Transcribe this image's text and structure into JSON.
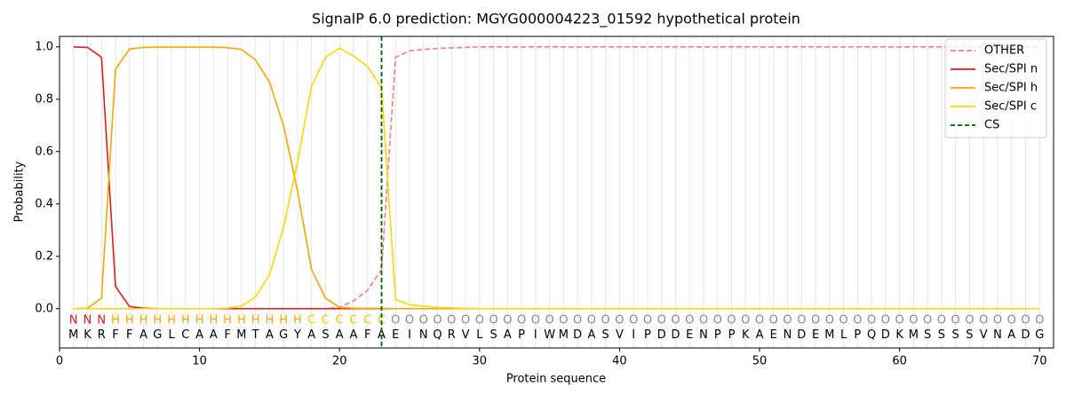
{
  "chart_data": {
    "type": "line",
    "title": "SignalP 6.0 prediction: MGYG000004223_01592 hypothetical protein",
    "xlabel": "Protein sequence",
    "ylabel": "Probability",
    "x": [
      1,
      2,
      3,
      4,
      5,
      6,
      7,
      8,
      9,
      10,
      11,
      12,
      13,
      14,
      15,
      16,
      17,
      18,
      19,
      20,
      21,
      22,
      23,
      24,
      25,
      26,
      27,
      28,
      29,
      30,
      31,
      32,
      33,
      34,
      35,
      36,
      37,
      38,
      39,
      40,
      41,
      42,
      43,
      44,
      45,
      46,
      47,
      48,
      49,
      50,
      51,
      52,
      53,
      54,
      55,
      56,
      57,
      58,
      59,
      60,
      61,
      62,
      63,
      64,
      65,
      66,
      67,
      68,
      69,
      70
    ],
    "residues": [
      "M",
      "K",
      "R",
      "F",
      "F",
      "A",
      "G",
      "L",
      "C",
      "A",
      "A",
      "F",
      "M",
      "T",
      "A",
      "G",
      "Y",
      "A",
      "S",
      "A",
      "A",
      "F",
      "A",
      "E",
      "I",
      "N",
      "Q",
      "R",
      "V",
      "L",
      "S",
      "A",
      "P",
      "I",
      "W",
      "M",
      "D",
      "A",
      "S",
      "V",
      "I",
      "P",
      "D",
      "D",
      "E",
      "N",
      "P",
      "P",
      "K",
      "A",
      "E",
      "N",
      "D",
      "E",
      "M",
      "L",
      "P",
      "Q",
      "D",
      "K",
      "M",
      "S",
      "S",
      "S",
      "S",
      "V",
      "N",
      "A",
      "D",
      "G"
    ],
    "labels": [
      "N",
      "N",
      "N",
      "H",
      "H",
      "H",
      "H",
      "H",
      "H",
      "H",
      "H",
      "H",
      "H",
      "H",
      "H",
      "H",
      "H",
      "C",
      "C",
      "C",
      "C",
      "C",
      "C",
      "O",
      "O",
      "O",
      "O",
      "O",
      "O",
      "O",
      "O",
      "O",
      "O",
      "O",
      "O",
      "O",
      "O",
      "O",
      "O",
      "O",
      "O",
      "O",
      "O",
      "O",
      "O",
      "O",
      "O",
      "O",
      "O",
      "O",
      "O",
      "O",
      "O",
      "O",
      "O",
      "O",
      "O",
      "O",
      "O",
      "O",
      "O",
      "O",
      "O",
      "O",
      "O",
      "O",
      "O",
      "O",
      "O",
      "O"
    ],
    "label_colors": {
      "N": "#e41a1c",
      "H": "#ffa500",
      "C": "#f5c400",
      "O": "#888888"
    },
    "series": [
      {
        "name": "OTHER",
        "color": "#f08080",
        "dashed": true,
        "values": [
          0,
          0,
          0,
          0,
          0,
          0,
          0,
          0,
          0,
          0,
          0,
          0,
          0,
          0,
          0,
          0,
          0,
          0,
          0,
          0.005,
          0.03,
          0.07,
          0.15,
          0.96,
          0.985,
          0.99,
          0.994,
          0.996,
          0.998,
          1,
          1,
          1,
          1,
          1,
          1,
          1,
          1,
          1,
          1,
          1,
          1,
          1,
          1,
          1,
          1,
          1,
          1,
          1,
          1,
          1,
          1,
          1,
          1,
          1,
          1,
          1,
          1,
          1,
          1,
          1,
          1,
          1,
          1,
          1,
          1,
          1,
          1,
          1,
          1,
          1
        ]
      },
      {
        "name": "Sec/SPI n",
        "color": "#e41a1c",
        "values": [
          1,
          0.998,
          0.96,
          0.085,
          0.008,
          0.002,
          0,
          0,
          0,
          0,
          0,
          0,
          0,
          0,
          0,
          0,
          0,
          0,
          0,
          0,
          0,
          0,
          0,
          0,
          0,
          0,
          0,
          0,
          0,
          0,
          0,
          0,
          0,
          0,
          0,
          0,
          0,
          0,
          0,
          0,
          0,
          0,
          0,
          0,
          0,
          0,
          0,
          0,
          0,
          0,
          0,
          0,
          0,
          0,
          0,
          0,
          0,
          0,
          0,
          0,
          0,
          0,
          0,
          0,
          0,
          0,
          0,
          0,
          0,
          0
        ]
      },
      {
        "name": "Sec/SPI h",
        "color": "#ffa500",
        "values": [
          0,
          0.002,
          0.04,
          0.915,
          0.992,
          0.998,
          0.999,
          0.999,
          0.999,
          0.999,
          0.999,
          0.997,
          0.99,
          0.95,
          0.865,
          0.7,
          0.45,
          0.15,
          0.04,
          0.005,
          0.002,
          0.001,
          0.001,
          0,
          0,
          0,
          0,
          0,
          0,
          0,
          0,
          0,
          0,
          0,
          0,
          0,
          0,
          0,
          0,
          0,
          0,
          0,
          0,
          0,
          0,
          0,
          0,
          0,
          0,
          0,
          0,
          0,
          0,
          0,
          0,
          0,
          0,
          0,
          0,
          0,
          0,
          0,
          0,
          0,
          0,
          0,
          0,
          0,
          0,
          0
        ]
      },
      {
        "name": "Sec/SPI c",
        "color": "#ffd700",
        "values": [
          0,
          0,
          0,
          0,
          0,
          0,
          0,
          0,
          0,
          0,
          0,
          0.002,
          0.01,
          0.045,
          0.13,
          0.31,
          0.56,
          0.85,
          0.96,
          0.995,
          0.965,
          0.925,
          0.845,
          0.035,
          0.015,
          0.01,
          0.005,
          0.003,
          0.001,
          0,
          0,
          0,
          0,
          0,
          0,
          0,
          0,
          0,
          0,
          0,
          0,
          0,
          0,
          0,
          0,
          0,
          0,
          0,
          0,
          0,
          0,
          0,
          0,
          0,
          0,
          0,
          0,
          0,
          0,
          0,
          0,
          0,
          0,
          0,
          0,
          0,
          0,
          0,
          0,
          0
        ]
      }
    ],
    "cs": {
      "name": "CS",
      "x": 23,
      "color": "#006400"
    },
    "xlim": [
      0,
      71
    ],
    "ylim": [
      -0.15,
      1.04
    ],
    "xticks": [
      0,
      10,
      20,
      30,
      40,
      50,
      60,
      70
    ],
    "yticks": [
      {
        "value": 0,
        "label": "0.0"
      },
      0.2,
      0.4,
      0.6,
      0.8,
      {
        "value": 1,
        "label": "1.0"
      }
    ],
    "grid": true,
    "legend": "upper right"
  }
}
